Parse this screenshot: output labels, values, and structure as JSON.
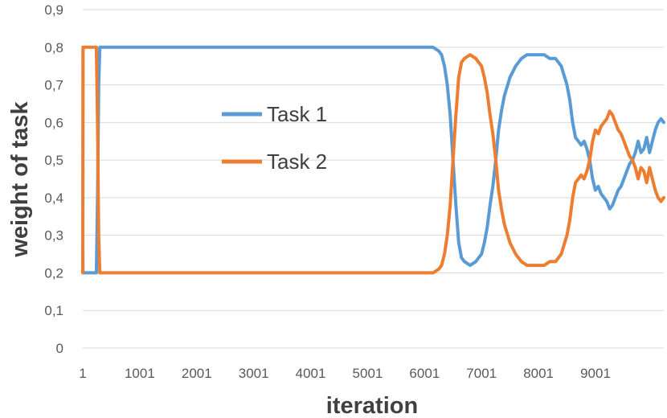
{
  "chart_data": {
    "type": "line",
    "xlabel": "iteration",
    "ylabel": "weight of task",
    "xlim": [
      1,
      10200
    ],
    "ylim": [
      0,
      0.9
    ],
    "y_ticks": [
      "0",
      "0,1",
      "0,2",
      "0,3",
      "0,4",
      "0,5",
      "0,6",
      "0,7",
      "0,8",
      "0,9"
    ],
    "x_ticks": [
      "1",
      "1001",
      "2001",
      "3001",
      "4001",
      "5001",
      "6001",
      "7001",
      "8001",
      "9001"
    ],
    "grid": "horizontal",
    "legend_position": "center-left",
    "series": [
      {
        "name": "Task 1",
        "color": "#5b9bd5",
        "x": [
          1,
          5,
          10,
          50,
          100,
          150,
          200,
          240,
          260,
          280,
          300,
          350,
          500,
          1000,
          2000,
          3000,
          4000,
          5000,
          6000,
          6150,
          6250,
          6300,
          6350,
          6400,
          6450,
          6500,
          6550,
          6600,
          6650,
          6700,
          6800,
          6900,
          6950,
          7000,
          7050,
          7100,
          7150,
          7200,
          7250,
          7300,
          7350,
          7400,
          7500,
          7600,
          7700,
          7800,
          7900,
          8000,
          8100,
          8200,
          8300,
          8400,
          8500,
          8550,
          8600,
          8650,
          8700,
          8750,
          8800,
          8850,
          8900,
          8950,
          9000,
          9050,
          9100,
          9150,
          9200,
          9250,
          9300,
          9350,
          9400,
          9450,
          9500,
          9550,
          9600,
          9650,
          9700,
          9750,
          9800,
          9850,
          9900,
          9950,
          10000,
          10050,
          10100,
          10150,
          10200
        ],
        "y": [
          0.27,
          0.2,
          0.2,
          0.2,
          0.2,
          0.2,
          0.2,
          0.2,
          0.4,
          0.7,
          0.8,
          0.8,
          0.8,
          0.8,
          0.8,
          0.8,
          0.8,
          0.8,
          0.8,
          0.8,
          0.79,
          0.78,
          0.75,
          0.7,
          0.62,
          0.5,
          0.38,
          0.28,
          0.24,
          0.23,
          0.22,
          0.23,
          0.24,
          0.25,
          0.28,
          0.32,
          0.38,
          0.43,
          0.5,
          0.58,
          0.63,
          0.67,
          0.72,
          0.75,
          0.77,
          0.78,
          0.78,
          0.78,
          0.78,
          0.77,
          0.77,
          0.75,
          0.7,
          0.66,
          0.6,
          0.56,
          0.55,
          0.54,
          0.55,
          0.53,
          0.5,
          0.45,
          0.42,
          0.43,
          0.41,
          0.4,
          0.39,
          0.37,
          0.38,
          0.4,
          0.42,
          0.43,
          0.45,
          0.47,
          0.49,
          0.5,
          0.52,
          0.55,
          0.52,
          0.53,
          0.56,
          0.52,
          0.55,
          0.58,
          0.6,
          0.61,
          0.6
        ]
      },
      {
        "name": "Task 2",
        "color": "#ed7d31",
        "x": [
          1,
          5,
          10,
          50,
          100,
          150,
          200,
          240,
          260,
          280,
          300,
          350,
          500,
          1000,
          2000,
          3000,
          4000,
          5000,
          6000,
          6150,
          6250,
          6300,
          6350,
          6400,
          6450,
          6500,
          6550,
          6600,
          6650,
          6700,
          6800,
          6900,
          6950,
          7000,
          7050,
          7100,
          7150,
          7200,
          7250,
          7300,
          7350,
          7400,
          7500,
          7600,
          7700,
          7800,
          7900,
          8000,
          8100,
          8200,
          8300,
          8400,
          8500,
          8550,
          8600,
          8650,
          8700,
          8750,
          8800,
          8850,
          8900,
          8950,
          9000,
          9050,
          9100,
          9150,
          9200,
          9250,
          9300,
          9350,
          9400,
          9450,
          9500,
          9550,
          9600,
          9650,
          9700,
          9750,
          9800,
          9850,
          9900,
          9950,
          10000,
          10050,
          10100,
          10150,
          10200
        ],
        "y": [
          0.2,
          0.8,
          0.8,
          0.8,
          0.8,
          0.8,
          0.8,
          0.8,
          0.6,
          0.3,
          0.2,
          0.2,
          0.2,
          0.2,
          0.2,
          0.2,
          0.2,
          0.2,
          0.2,
          0.2,
          0.21,
          0.22,
          0.25,
          0.3,
          0.38,
          0.5,
          0.62,
          0.72,
          0.76,
          0.77,
          0.78,
          0.77,
          0.76,
          0.75,
          0.72,
          0.68,
          0.62,
          0.57,
          0.5,
          0.42,
          0.37,
          0.33,
          0.28,
          0.25,
          0.23,
          0.22,
          0.22,
          0.22,
          0.22,
          0.23,
          0.23,
          0.25,
          0.3,
          0.34,
          0.4,
          0.44,
          0.45,
          0.46,
          0.45,
          0.47,
          0.5,
          0.55,
          0.58,
          0.57,
          0.59,
          0.6,
          0.61,
          0.63,
          0.62,
          0.6,
          0.58,
          0.57,
          0.55,
          0.53,
          0.51,
          0.5,
          0.48,
          0.45,
          0.48,
          0.47,
          0.44,
          0.48,
          0.45,
          0.42,
          0.4,
          0.39,
          0.4
        ]
      }
    ]
  }
}
